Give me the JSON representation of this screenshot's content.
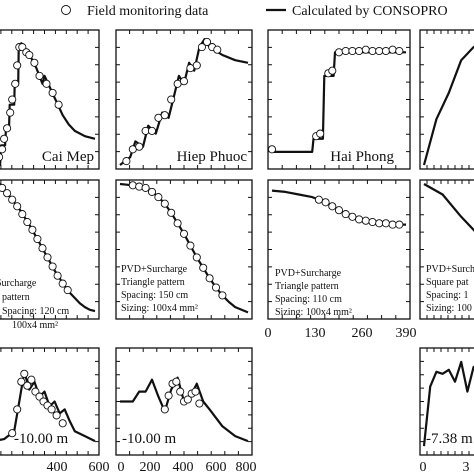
{
  "legend": {
    "observed_label": "Field monitoring data",
    "calculated_label": "Calculated by CONSOPRO"
  },
  "chart_data": [
    {
      "type": "line",
      "row": 1,
      "column": 1,
      "panel_label": "Cai Mep",
      "series": [
        {
          "name": "Calculated by CONSOPRO",
          "style": "line",
          "x": [
            0,
            0.06,
            0.07,
            0.11,
            0.12,
            0.15,
            0.155,
            0.2,
            0.205,
            0.24,
            0.245,
            0.26,
            0.27,
            0.3,
            0.36,
            0.42,
            0.48,
            0.5,
            0.56,
            0.62,
            0.68,
            0.74,
            0.8,
            0.9,
            1.0
          ],
          "y": [
            0.0,
            0.0,
            0.15,
            0.15,
            0.3,
            0.3,
            0.46,
            0.46,
            0.62,
            0.62,
            0.88,
            0.88,
            0.93,
            0.9,
            0.83,
            0.74,
            0.62,
            0.68,
            0.58,
            0.48,
            0.38,
            0.31,
            0.26,
            0.22,
            0.2
          ]
        },
        {
          "name": "Field monitoring data",
          "style": "markers",
          "x": [
            0.02,
            0.05,
            0.08,
            0.1,
            0.13,
            0.16,
            0.18,
            0.21,
            0.23,
            0.25,
            0.28,
            0.32,
            0.35,
            0.4,
            0.45,
            0.52,
            0.58,
            0.64
          ],
          "y": [
            0.04,
            0.06,
            0.12,
            0.2,
            0.28,
            0.4,
            0.5,
            0.62,
            0.76,
            0.9,
            0.9,
            0.86,
            0.84,
            0.78,
            0.68,
            0.62,
            0.55,
            0.46
          ]
        }
      ]
    },
    {
      "type": "line",
      "row": 1,
      "column": 2,
      "panel_label": "Hiep Phuoc",
      "series": [
        {
          "name": "Calculated by CONSOPRO",
          "style": "line",
          "x": [
            0,
            0.08,
            0.12,
            0.18,
            0.22,
            0.28,
            0.33,
            0.38,
            0.42,
            0.46,
            0.5,
            0.54,
            0.58,
            0.62,
            0.66,
            0.7,
            0.8,
            0.9,
            1.0
          ],
          "y": [
            0.0,
            0.06,
            0.18,
            0.14,
            0.3,
            0.24,
            0.4,
            0.36,
            0.52,
            0.68,
            0.62,
            0.78,
            0.72,
            0.9,
            0.96,
            0.9,
            0.84,
            0.8,
            0.78
          ]
        },
        {
          "name": "Field monitoring data",
          "style": "markers",
          "x": [
            0.05,
            0.1,
            0.15,
            0.2,
            0.25,
            0.3,
            0.35,
            0.4,
            0.45,
            0.5,
            0.55,
            0.6,
            0.64,
            0.68,
            0.72,
            0.76
          ],
          "y": [
            0.03,
            0.12,
            0.14,
            0.26,
            0.26,
            0.36,
            0.38,
            0.5,
            0.62,
            0.64,
            0.74,
            0.76,
            0.9,
            0.94,
            0.9,
            0.88
          ]
        }
      ]
    },
    {
      "type": "line",
      "row": 1,
      "column": 3,
      "panel_label": "Hai Phong",
      "series": [
        {
          "name": "Calculated by CONSOPRO",
          "style": "line",
          "x": [
            0,
            0.3,
            0.31,
            0.38,
            0.39,
            0.46,
            0.47,
            0.6,
            0.8,
            1.0
          ],
          "y": [
            0.1,
            0.1,
            0.2,
            0.2,
            0.68,
            0.68,
            0.86,
            0.86,
            0.86,
            0.86
          ]
        },
        {
          "name": "Field monitoring data",
          "style": "markers",
          "x": [
            0.0,
            0.33,
            0.36,
            0.42,
            0.45,
            0.5,
            0.55,
            0.6,
            0.65,
            0.7,
            0.75,
            0.8,
            0.85,
            0.9,
            0.95
          ],
          "y": [
            0.12,
            0.22,
            0.24,
            0.7,
            0.72,
            0.86,
            0.87,
            0.87,
            0.87,
            0.88,
            0.87,
            0.87,
            0.87,
            0.88,
            0.87
          ]
        }
      ]
    },
    {
      "type": "line",
      "row": 1,
      "column": 4,
      "panel_label": "",
      "series": [
        {
          "name": "Calculated by CONSOPRO",
          "style": "line",
          "x": [
            0,
            0.2,
            0.4,
            0.6,
            0.8,
            1.0
          ],
          "y": [
            0.0,
            0.35,
            0.55,
            0.8,
            0.9,
            0.95
          ]
        }
      ]
    },
    {
      "type": "line",
      "row": 2,
      "column": 1,
      "annotation": [
        "Surcharge",
        "pattern",
        "Spacing: 120 cm",
        "100x4 mm²"
      ],
      "series": [
        {
          "name": "Calculated by CONSOPRO",
          "style": "line",
          "x": [
            0,
            0.05,
            0.1,
            0.15,
            0.2,
            0.25,
            0.3,
            0.35,
            0.4,
            0.45,
            0.5,
            0.55,
            0.6,
            0.65,
            0.7,
            0.75,
            0.8,
            0.85,
            0.9,
            0.95,
            1.0
          ],
          "y": [
            1.0,
            0.98,
            0.95,
            0.91,
            0.86,
            0.81,
            0.75,
            0.69,
            0.62,
            0.55,
            0.48,
            0.41,
            0.34,
            0.28,
            0.22,
            0.17,
            0.13,
            0.09,
            0.06,
            0.04,
            0.03
          ]
        },
        {
          "name": "Field monitoring data",
          "style": "markers",
          "x": [
            0.03,
            0.08,
            0.13,
            0.18,
            0.23,
            0.28,
            0.33,
            0.38,
            0.43,
            0.48,
            0.53,
            0.58,
            0.63,
            0.68,
            0.73
          ],
          "y": [
            0.99,
            0.97,
            0.93,
            0.88,
            0.83,
            0.77,
            0.71,
            0.65,
            0.58,
            0.51,
            0.44,
            0.37,
            0.3,
            0.24,
            0.19
          ]
        }
      ]
    },
    {
      "type": "line",
      "row": 2,
      "column": 2,
      "annotation": [
        "PVD+Surcharge",
        "Triangle pattern",
        "Spacing: 150 cm",
        "Sizing: 100x4 mm²"
      ],
      "series": [
        {
          "name": "Calculated by CONSOPRO",
          "style": "line",
          "x": [
            0,
            0.1,
            0.2,
            0.25,
            0.3,
            0.35,
            0.4,
            0.45,
            0.5,
            0.55,
            0.6,
            0.65,
            0.7,
            0.75,
            0.8,
            0.85,
            0.9,
            1.0
          ],
          "y": [
            1.0,
            0.99,
            0.97,
            0.94,
            0.9,
            0.85,
            0.78,
            0.7,
            0.62,
            0.53,
            0.44,
            0.36,
            0.28,
            0.21,
            0.15,
            0.1,
            0.06,
            0.02
          ]
        },
        {
          "name": "Field monitoring data",
          "style": "markers",
          "x": [
            0.1,
            0.15,
            0.2,
            0.25,
            0.3,
            0.35,
            0.4,
            0.45,
            0.5,
            0.55,
            0.6,
            0.65,
            0.7,
            0.75,
            0.8
          ],
          "y": [
            0.99,
            0.98,
            0.97,
            0.94,
            0.9,
            0.85,
            0.78,
            0.7,
            0.62,
            0.53,
            0.44,
            0.36,
            0.28,
            0.21,
            0.15
          ]
        }
      ]
    },
    {
      "type": "line",
      "row": 2,
      "column": 3,
      "annotation": [
        "PVD+Surcharge",
        "Triangle pattern",
        "Spacing: 110 cm",
        "Sizing: 100x4 mm²"
      ],
      "x_ticks": [
        "0",
        "130",
        "260",
        "390"
      ],
      "series": [
        {
          "name": "Calculated by CONSOPRO",
          "style": "line",
          "x": [
            0,
            0.1,
            0.2,
            0.3,
            0.4,
            0.5,
            0.6,
            0.7,
            0.8,
            0.9,
            1.0
          ],
          "y": [
            0.95,
            0.94,
            0.92,
            0.9,
            0.86,
            0.8,
            0.75,
            0.72,
            0.7,
            0.69,
            0.69
          ]
        },
        {
          "name": "Field monitoring data",
          "style": "markers",
          "x": [
            0.35,
            0.4,
            0.45,
            0.5,
            0.55,
            0.6,
            0.65,
            0.7,
            0.75,
            0.8,
            0.85,
            0.9,
            0.95
          ],
          "y": [
            0.88,
            0.86,
            0.83,
            0.8,
            0.77,
            0.75,
            0.73,
            0.72,
            0.71,
            0.7,
            0.7,
            0.69,
            0.69
          ]
        }
      ]
    },
    {
      "type": "line",
      "row": 2,
      "column": 4,
      "annotation": [
        "PVD+Surcharge",
        "Square pat",
        "Spacing: 1",
        "Sizing: 100"
      ],
      "series": [
        {
          "name": "Calculated by CONSOPRO",
          "style": "line",
          "x": [
            0,
            0.3,
            0.6,
            1.0
          ],
          "y": [
            1.0,
            0.92,
            0.75,
            0.55
          ]
        }
      ]
    },
    {
      "type": "line",
      "row": 3,
      "column": 1,
      "panel_label": "-10.00 m",
      "x_ticks": [
        "400",
        "600"
      ],
      "series": [
        {
          "name": "Calculated by CONSOPRO",
          "style": "line",
          "x": [
            0,
            0.1,
            0.2,
            0.25,
            0.3,
            0.35,
            0.4,
            0.45,
            0.5,
            0.55,
            0.6,
            0.65,
            0.7,
            0.75,
            0.8,
            0.9,
            1.0
          ],
          "y": [
            0.1,
            0.12,
            0.2,
            0.5,
            0.8,
            0.62,
            0.7,
            0.55,
            0.6,
            0.45,
            0.5,
            0.38,
            0.42,
            0.3,
            0.2,
            0.15,
            0.1
          ]
        },
        {
          "name": "Field monitoring data",
          "style": "markers",
          "x": [
            0.18,
            0.23,
            0.27,
            0.3,
            0.33,
            0.37,
            0.41,
            0.45,
            0.49,
            0.53,
            0.57,
            0.62,
            0.68
          ],
          "y": [
            0.18,
            0.42,
            0.7,
            0.78,
            0.66,
            0.72,
            0.6,
            0.55,
            0.5,
            0.46,
            0.42,
            0.36,
            0.28
          ]
        }
      ]
    },
    {
      "type": "line",
      "row": 3,
      "column": 2,
      "panel_label": "-10.00 m",
      "x_ticks": [
        "0",
        "200",
        "400",
        "600",
        "800"
      ],
      "series": [
        {
          "name": "Calculated by CONSOPRO",
          "style": "line",
          "x": [
            0,
            0.1,
            0.15,
            0.2,
            0.25,
            0.3,
            0.35,
            0.4,
            0.45,
            0.5,
            0.55,
            0.6,
            0.65,
            0.7,
            0.8,
            0.9,
            1.0
          ],
          "y": [
            0.5,
            0.5,
            0.6,
            0.6,
            0.72,
            0.55,
            0.4,
            0.62,
            0.74,
            0.5,
            0.55,
            0.68,
            0.5,
            0.42,
            0.25,
            0.15,
            0.1
          ]
        },
        {
          "name": "Field monitoring data",
          "style": "markers",
          "x": [
            0.35,
            0.38,
            0.41,
            0.44,
            0.47,
            0.5,
            0.53,
            0.56,
            0.59,
            0.62
          ],
          "y": [
            0.42,
            0.56,
            0.68,
            0.7,
            0.6,
            0.5,
            0.52,
            0.58,
            0.6,
            0.48
          ]
        }
      ]
    },
    {
      "type": "line",
      "row": 3,
      "column": 4,
      "panel_label": "-7.38 m",
      "x_ticks": [
        "0",
        "3"
      ],
      "series": [
        {
          "name": "Calculated by CONSOPRO",
          "style": "line",
          "x": [
            0,
            0.1,
            0.2,
            0.3,
            0.4,
            0.5,
            0.6,
            0.7,
            0.8,
            1.0
          ],
          "y": [
            0.05,
            0.65,
            0.8,
            0.78,
            0.82,
            0.7,
            0.9,
            0.6,
            0.85,
            0.8
          ]
        }
      ]
    }
  ]
}
